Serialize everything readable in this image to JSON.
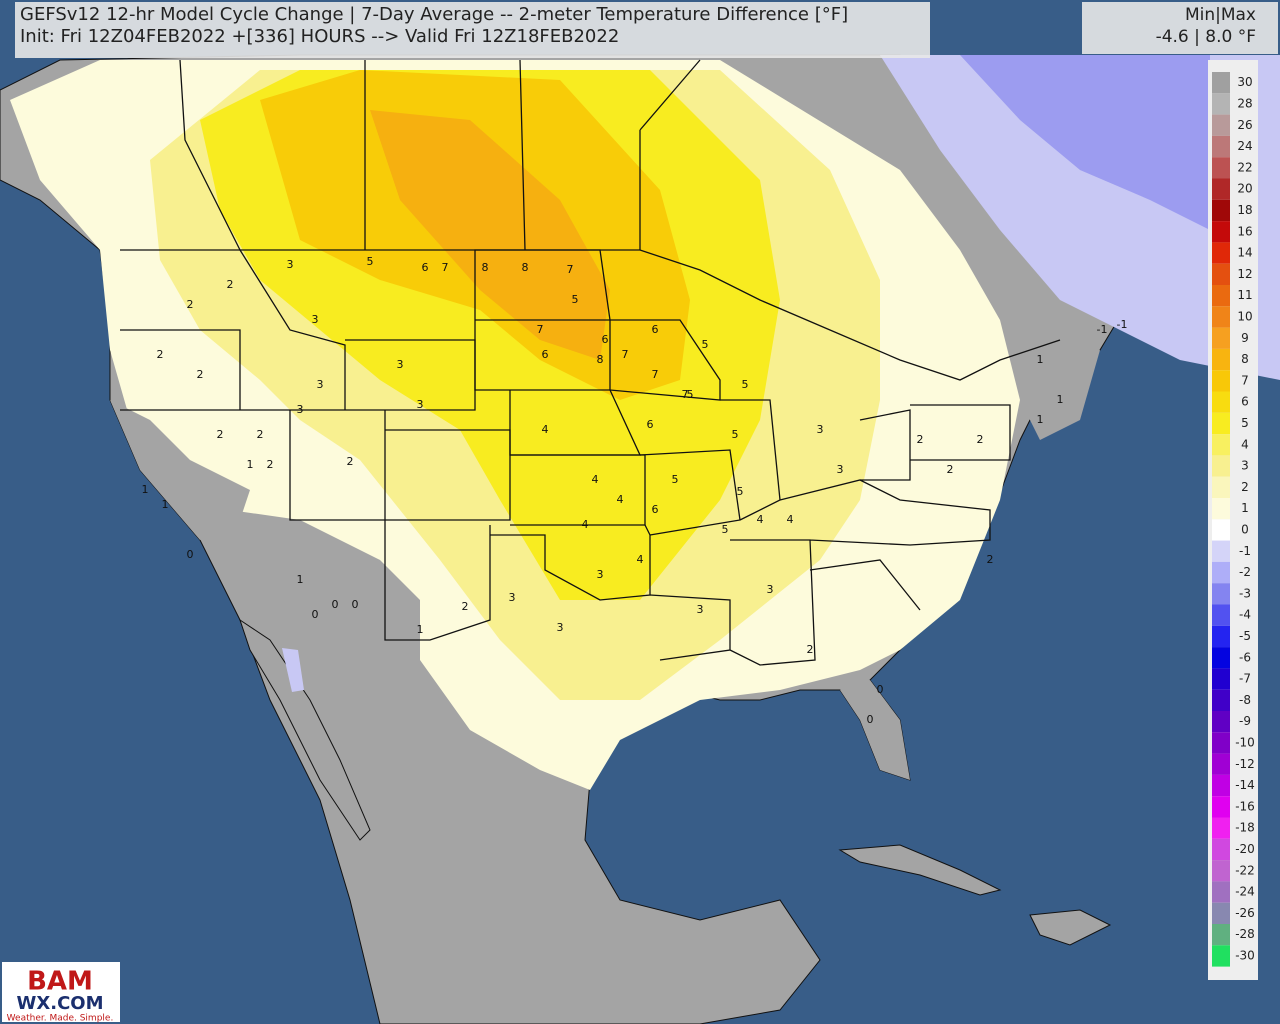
{
  "header": {
    "title": "GEFSv12 12-hr Model Cycle Change | 7-Day Average -- 2-meter Temperature Difference [°F]",
    "subtitle": "Init: Fri 12Z04FEB2022 +[336] HOURS --> Valid Fri 12Z18FEB2022"
  },
  "minmax": {
    "label": "Min|Max",
    "values": "-4.6 | 8.0 °F"
  },
  "legend": {
    "items": [
      {
        "value": 30,
        "color": "#a0a0a0"
      },
      {
        "value": 28,
        "color": "#b4b4b4"
      },
      {
        "value": 26,
        "color": "#b89a9a"
      },
      {
        "value": 24,
        "color": "#bc7878"
      },
      {
        "value": 22,
        "color": "#bc5252"
      },
      {
        "value": 20,
        "color": "#b02828"
      },
      {
        "value": 18,
        "color": "#a00808"
      },
      {
        "value": 16,
        "color": "#c40a0a"
      },
      {
        "value": 14,
        "color": "#e02808"
      },
      {
        "value": 12,
        "color": "#e45010"
      },
      {
        "value": 11,
        "color": "#ea6a10"
      },
      {
        "value": 10,
        "color": "#f08418"
      },
      {
        "value": 9,
        "color": "#f6a020"
      },
      {
        "value": 8,
        "color": "#f8b410"
      },
      {
        "value": 7,
        "color": "#f8c808"
      },
      {
        "value": 6,
        "color": "#f8dc10"
      },
      {
        "value": 5,
        "color": "#f8ec20"
      },
      {
        "value": 4,
        "color": "#f8f060"
      },
      {
        "value": 3,
        "color": "#f8f090"
      },
      {
        "value": 2,
        "color": "#faf6bc"
      },
      {
        "value": 1,
        "color": "#fdfbdc"
      },
      {
        "value": 0,
        "color": "#ffffff"
      },
      {
        "value": -1,
        "color": "#d4d4f8"
      },
      {
        "value": -2,
        "color": "#aeaef8"
      },
      {
        "value": -3,
        "color": "#8484f0"
      },
      {
        "value": -4,
        "color": "#5252f0"
      },
      {
        "value": -5,
        "color": "#2424f0"
      },
      {
        "value": -6,
        "color": "#0404e0"
      },
      {
        "value": -7,
        "color": "#2000d0"
      },
      {
        "value": -8,
        "color": "#4000c8"
      },
      {
        "value": -9,
        "color": "#6000c4"
      },
      {
        "value": -10,
        "color": "#8000c8"
      },
      {
        "value": -12,
        "color": "#a000d4"
      },
      {
        "value": -14,
        "color": "#c000e4"
      },
      {
        "value": -16,
        "color": "#e000f0"
      },
      {
        "value": -18,
        "color": "#f020f0"
      },
      {
        "value": -20,
        "color": "#d048e0"
      },
      {
        "value": -22,
        "color": "#c064d0"
      },
      {
        "value": -24,
        "color": "#a070c0"
      },
      {
        "value": -26,
        "color": "#8888b0"
      },
      {
        "value": -28,
        "color": "#60b080"
      },
      {
        "value": -30,
        "color": "#20e060"
      }
    ]
  },
  "map_labels": [
    2,
    2,
    2,
    2,
    3,
    3,
    5,
    6,
    7,
    8,
    8,
    7,
    7,
    6,
    5,
    6,
    7,
    8,
    7,
    7,
    6,
    5,
    5,
    5,
    5,
    4,
    4,
    3,
    3,
    3,
    3,
    2,
    2,
    2,
    2,
    1,
    1,
    1,
    0,
    0,
    0,
    0,
    1,
    1,
    2,
    3,
    3,
    3,
    4,
    4,
    5,
    5,
    4,
    3,
    3,
    2,
    2,
    2,
    2,
    1,
    -1,
    -1,
    1,
    1,
    0,
    0,
    3,
    4,
    6,
    6,
    5,
    4,
    3,
    2
  ],
  "logo": {
    "name": "BAM",
    "site": "WX.COM",
    "tagline": "Weather. Made. Simple."
  }
}
